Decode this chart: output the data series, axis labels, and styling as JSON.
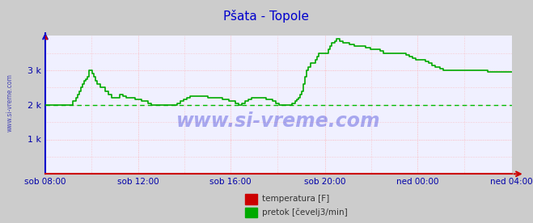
{
  "title": "Pšata - Topole",
  "title_color": "#0000cc",
  "fig_bg_color": "#cccccc",
  "plot_bg_color": "#f0f0ff",
  "grid_color": "#ffaaaa",
  "ylabel_color": "#0000aa",
  "ylim": [
    0,
    4000
  ],
  "ytick_vals": [
    1000,
    2000,
    3000
  ],
  "ytick_labels": [
    "1 k",
    "2 k",
    "3 k"
  ],
  "xtick_labels": [
    "sob 08:00",
    "sob 12:00",
    "sob 16:00",
    "sob 20:00",
    "ned 00:00",
    "ned 04:00"
  ],
  "dashed_line_y": 2000,
  "dashed_line_color": "#00bb00",
  "watermark": "www.si-vreme.com",
  "watermark_color": "#0000cc",
  "watermark_alpha": 0.3,
  "side_label": "www.si-vreme.com",
  "legend_items": [
    {
      "label": "temperatura [F]",
      "color": "#cc0000"
    },
    {
      "label": "pretok [čevelj3/min]",
      "color": "#00aa00"
    }
  ],
  "n_points": 288,
  "flow_values": [
    2000,
    2000,
    2000,
    2000,
    2000,
    2000,
    2000,
    2000,
    2000,
    2000,
    2000,
    2000,
    2000,
    2000,
    2000,
    2000,
    2000,
    2100,
    2100,
    2200,
    2300,
    2400,
    2500,
    2600,
    2700,
    2750,
    2800,
    3000,
    3000,
    2900,
    2800,
    2700,
    2600,
    2600,
    2500,
    2500,
    2500,
    2400,
    2400,
    2300,
    2300,
    2200,
    2200,
    2200,
    2200,
    2200,
    2300,
    2300,
    2250,
    2250,
    2200,
    2200,
    2200,
    2200,
    2200,
    2150,
    2150,
    2150,
    2150,
    2100,
    2100,
    2100,
    2100,
    2050,
    2050,
    2000,
    2000,
    2000,
    2000,
    2000,
    2000,
    2000,
    2000,
    2000,
    2000,
    2000,
    2000,
    2000,
    2000,
    2000,
    2000,
    2050,
    2050,
    2100,
    2100,
    2150,
    2150,
    2200,
    2200,
    2250,
    2250,
    2250,
    2250,
    2250,
    2250,
    2250,
    2250,
    2250,
    2250,
    2250,
    2200,
    2200,
    2200,
    2200,
    2200,
    2200,
    2200,
    2200,
    2200,
    2150,
    2150,
    2150,
    2150,
    2100,
    2100,
    2100,
    2100,
    2050,
    2050,
    2000,
    2000,
    2050,
    2050,
    2100,
    2100,
    2150,
    2150,
    2200,
    2200,
    2200,
    2200,
    2200,
    2200,
    2200,
    2200,
    2200,
    2150,
    2150,
    2150,
    2150,
    2100,
    2100,
    2050,
    2050,
    2000,
    2000,
    2000,
    2000,
    2000,
    2000,
    2000,
    2000,
    2050,
    2050,
    2100,
    2150,
    2200,
    2300,
    2400,
    2600,
    2800,
    3000,
    3100,
    3200,
    3200,
    3200,
    3300,
    3400,
    3500,
    3500,
    3500,
    3500,
    3500,
    3500,
    3600,
    3700,
    3800,
    3800,
    3850,
    3900,
    3900,
    3850,
    3850,
    3800,
    3800,
    3800,
    3800,
    3750,
    3750,
    3750,
    3700,
    3700,
    3700,
    3700,
    3700,
    3700,
    3700,
    3650,
    3650,
    3650,
    3600,
    3600,
    3600,
    3600,
    3600,
    3600,
    3550,
    3550,
    3500,
    3500,
    3500,
    3500,
    3500,
    3500,
    3500,
    3500,
    3500,
    3500,
    3500,
    3500,
    3500,
    3500,
    3450,
    3450,
    3400,
    3400,
    3350,
    3350,
    3300,
    3300,
    3300,
    3300,
    3300,
    3300,
    3250,
    3250,
    3200,
    3200,
    3150,
    3150,
    3100,
    3100,
    3100,
    3050,
    3050,
    3000,
    3000,
    3000,
    3000,
    3000,
    3000,
    3000,
    3000,
    3000,
    3000,
    3000,
    3000,
    3000,
    3000,
    3000,
    3000,
    3000,
    3000,
    3000,
    3000,
    3000,
    3000,
    3000,
    3000,
    3000,
    3000,
    3000,
    2950,
    2950,
    2950,
    2950,
    2950,
    2950,
    2950,
    2950,
    2950,
    2950,
    2950,
    2950,
    2950,
    2950,
    2950,
    2950
  ],
  "temp_value": 0
}
